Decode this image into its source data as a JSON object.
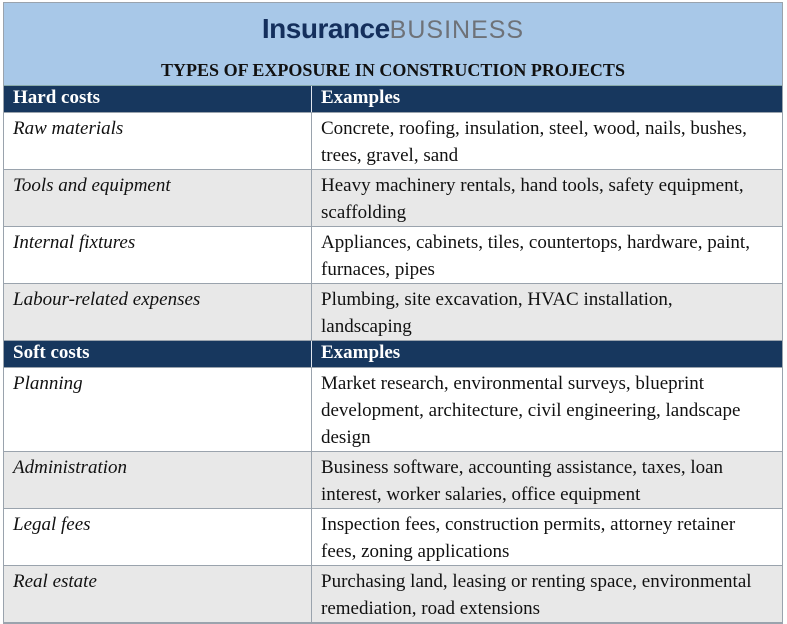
{
  "header": {
    "logo_bold": "Insurance",
    "logo_light": "BUSINESS",
    "title": "TYPES OF EXPOSURE IN CONSTRUCTION PROJECTS"
  },
  "sections": [
    {
      "columns": [
        "Hard costs",
        "Examples"
      ],
      "rows": [
        [
          "Raw materials",
          "Concrete, roofing, insulation, steel, wood, nails, bushes, trees, gravel, sand"
        ],
        [
          "Tools and equipment",
          "Heavy machinery rentals, hand tools, safety equipment, scaffolding"
        ],
        [
          "Internal fixtures",
          "Appliances, cabinets, tiles, countertops, hardware, paint, furnaces, pipes"
        ],
        [
          "Labour-related expenses",
          "Plumbing, site excavation, HVAC installation, landscaping"
        ]
      ]
    },
    {
      "columns": [
        "Soft costs",
        "Examples"
      ],
      "rows": [
        [
          "Planning",
          "Market research, environmental surveys, blueprint development, architecture, civil engineering, landscape design"
        ],
        [
          "Administration",
          "Business software, accounting assistance, taxes, loan interest, worker salaries, office equipment"
        ],
        [
          "Legal fees",
          "Inspection fees, construction permits, attorney retainer fees, zoning applications"
        ],
        [
          "Real estate",
          "Purchasing land, leasing or renting space, environmental remediation, road extensions"
        ]
      ]
    }
  ]
}
